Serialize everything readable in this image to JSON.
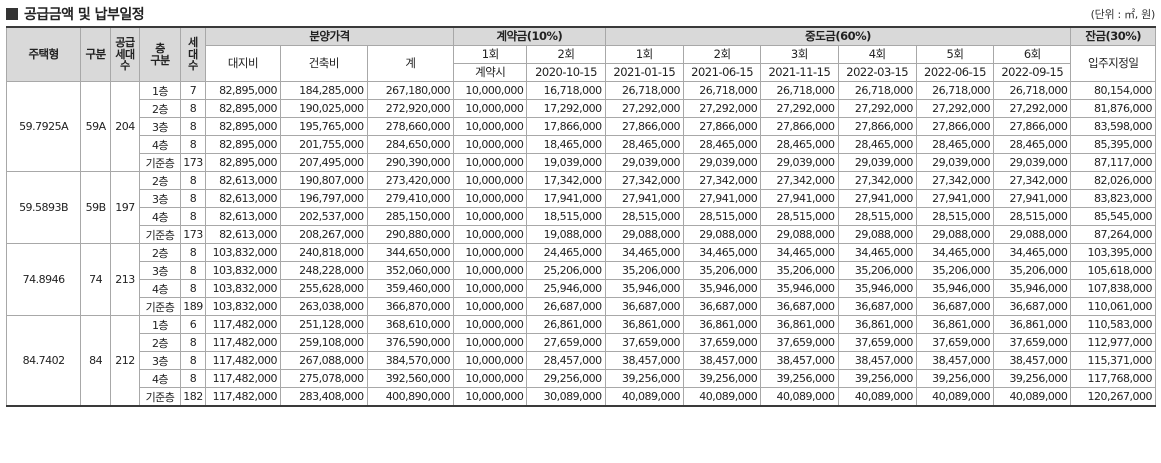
{
  "header": {
    "title": "공급금액 및 납부일정",
    "unit": "(단위 : ㎡, 원)"
  },
  "columns": {
    "type": "주택형",
    "group": "구분",
    "supply_lines": [
      "공급",
      "세대",
      "수"
    ],
    "floor_lines": [
      "층",
      "구분"
    ],
    "units_lines": [
      "세",
      "대",
      "수"
    ],
    "price_group": "분양가격",
    "land": "대지비",
    "building": "건축비",
    "total": "계",
    "deposit_group": "계약금(10%)",
    "mid_group": "중도금(60%)",
    "balance_group": "잔금(30%)",
    "dep_rounds": [
      {
        "label": "1회",
        "date": "계약시"
      },
      {
        "label": "2회",
        "date": "2020-10-15"
      }
    ],
    "mid_rounds": [
      {
        "label": "1회",
        "date": "2021-01-15"
      },
      {
        "label": "2회",
        "date": "2021-06-15"
      },
      {
        "label": "3회",
        "date": "2021-11-15"
      },
      {
        "label": "4회",
        "date": "2022-03-15"
      },
      {
        "label": "5회",
        "date": "2022-06-15"
      },
      {
        "label": "6회",
        "date": "2022-09-15"
      }
    ],
    "balance_date": "입주지정일"
  },
  "groups": [
    {
      "type": "59.7925A",
      "code": "59A",
      "supply": "204",
      "rows": [
        {
          "floor": "1층",
          "units": "7",
          "land": "82,895,000",
          "building": "184,285,000",
          "total": "267,180,000",
          "dep1": "10,000,000",
          "dep2": "16,718,000",
          "mid": "26,718,000",
          "balance": "80,154,000"
        },
        {
          "floor": "2층",
          "units": "8",
          "land": "82,895,000",
          "building": "190,025,000",
          "total": "272,920,000",
          "dep1": "10,000,000",
          "dep2": "17,292,000",
          "mid": "27,292,000",
          "balance": "81,876,000"
        },
        {
          "floor": "3층",
          "units": "8",
          "land": "82,895,000",
          "building": "195,765,000",
          "total": "278,660,000",
          "dep1": "10,000,000",
          "dep2": "17,866,000",
          "mid": "27,866,000",
          "balance": "83,598,000"
        },
        {
          "floor": "4층",
          "units": "8",
          "land": "82,895,000",
          "building": "201,755,000",
          "total": "284,650,000",
          "dep1": "10,000,000",
          "dep2": "18,465,000",
          "mid": "28,465,000",
          "balance": "85,395,000"
        },
        {
          "floor": "기준층",
          "units": "173",
          "land": "82,895,000",
          "building": "207,495,000",
          "total": "290,390,000",
          "dep1": "10,000,000",
          "dep2": "19,039,000",
          "mid": "29,039,000",
          "balance": "87,117,000"
        }
      ]
    },
    {
      "type": "59.5893B",
      "code": "59B",
      "supply": "197",
      "rows": [
        {
          "floor": "2층",
          "units": "8",
          "land": "82,613,000",
          "building": "190,807,000",
          "total": "273,420,000",
          "dep1": "10,000,000",
          "dep2": "17,342,000",
          "mid": "27,342,000",
          "balance": "82,026,000"
        },
        {
          "floor": "3층",
          "units": "8",
          "land": "82,613,000",
          "building": "196,797,000",
          "total": "279,410,000",
          "dep1": "10,000,000",
          "dep2": "17,941,000",
          "mid": "27,941,000",
          "balance": "83,823,000"
        },
        {
          "floor": "4층",
          "units": "8",
          "land": "82,613,000",
          "building": "202,537,000",
          "total": "285,150,000",
          "dep1": "10,000,000",
          "dep2": "18,515,000",
          "mid": "28,515,000",
          "balance": "85,545,000"
        },
        {
          "floor": "기준층",
          "units": "173",
          "land": "82,613,000",
          "building": "208,267,000",
          "total": "290,880,000",
          "dep1": "10,000,000",
          "dep2": "19,088,000",
          "mid": "29,088,000",
          "balance": "87,264,000"
        }
      ]
    },
    {
      "type": "74.8946",
      "code": "74",
      "supply": "213",
      "rows": [
        {
          "floor": "2층",
          "units": "8",
          "land": "103,832,000",
          "building": "240,818,000",
          "total": "344,650,000",
          "dep1": "10,000,000",
          "dep2": "24,465,000",
          "mid": "34,465,000",
          "balance": "103,395,000"
        },
        {
          "floor": "3층",
          "units": "8",
          "land": "103,832,000",
          "building": "248,228,000",
          "total": "352,060,000",
          "dep1": "10,000,000",
          "dep2": "25,206,000",
          "mid": "35,206,000",
          "balance": "105,618,000"
        },
        {
          "floor": "4층",
          "units": "8",
          "land": "103,832,000",
          "building": "255,628,000",
          "total": "359,460,000",
          "dep1": "10,000,000",
          "dep2": "25,946,000",
          "mid": "35,946,000",
          "balance": "107,838,000"
        },
        {
          "floor": "기준층",
          "units": "189",
          "land": "103,832,000",
          "building": "263,038,000",
          "total": "366,870,000",
          "dep1": "10,000,000",
          "dep2": "26,687,000",
          "mid": "36,687,000",
          "balance": "110,061,000"
        }
      ]
    },
    {
      "type": "84.7402",
      "code": "84",
      "supply": "212",
      "rows": [
        {
          "floor": "1층",
          "units": "6",
          "land": "117,482,000",
          "building": "251,128,000",
          "total": "368,610,000",
          "dep1": "10,000,000",
          "dep2": "26,861,000",
          "mid": "36,861,000",
          "balance": "110,583,000"
        },
        {
          "floor": "2층",
          "units": "8",
          "land": "117,482,000",
          "building": "259,108,000",
          "total": "376,590,000",
          "dep1": "10,000,000",
          "dep2": "27,659,000",
          "mid": "37,659,000",
          "balance": "112,977,000"
        },
        {
          "floor": "3층",
          "units": "8",
          "land": "117,482,000",
          "building": "267,088,000",
          "total": "384,570,000",
          "dep1": "10,000,000",
          "dep2": "28,457,000",
          "mid": "38,457,000",
          "balance": "115,371,000"
        },
        {
          "floor": "4층",
          "units": "8",
          "land": "117,482,000",
          "building": "275,078,000",
          "total": "392,560,000",
          "dep1": "10,000,000",
          "dep2": "29,256,000",
          "mid": "39,256,000",
          "balance": "117,768,000"
        },
        {
          "floor": "기준층",
          "units": "182",
          "land": "117,482,000",
          "building": "283,408,000",
          "total": "400,890,000",
          "dep1": "10,000,000",
          "dep2": "30,089,000",
          "mid": "40,089,000",
          "balance": "120,267,000"
        }
      ]
    }
  ]
}
